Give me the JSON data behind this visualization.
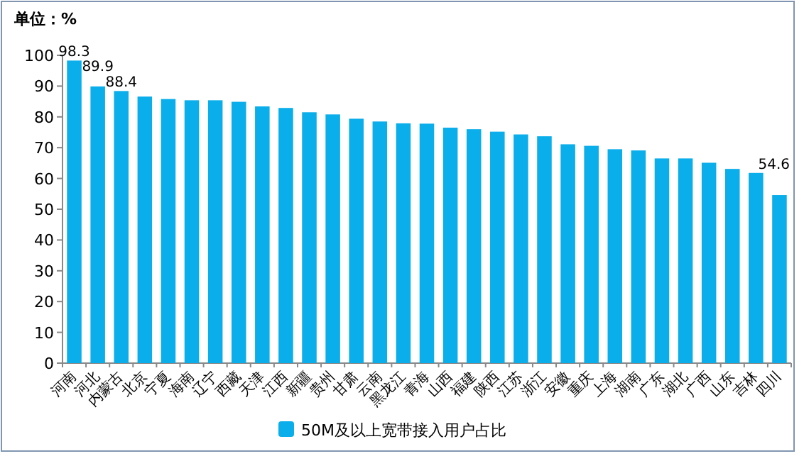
{
  "chart_data": {
    "type": "bar",
    "title": "单位：%",
    "categories": [
      "河南",
      "河北",
      "内蒙古",
      "北京",
      "宁夏",
      "海南",
      "辽宁",
      "西藏",
      "天津",
      "江西",
      "新疆",
      "贵州",
      "甘肃",
      "云南",
      "黑龙江",
      "青海",
      "山西",
      "福建",
      "陕西",
      "江苏",
      "浙江",
      "安徽",
      "重庆",
      "上海",
      "湖南",
      "广东",
      "湖北",
      "广西",
      "山东",
      "吉林",
      "四川"
    ],
    "series": [
      {
        "name": "50M及以上宽带接入用户占比",
        "color": "#0aaeea",
        "values": [
          98.3,
          89.9,
          88.4,
          86.6,
          85.8,
          85.4,
          85.4,
          84.9,
          83.4,
          82.9,
          81.5,
          80.8,
          79.4,
          78.5,
          77.9,
          77.8,
          76.5,
          76.0,
          75.2,
          74.3,
          73.7,
          71.1,
          70.6,
          69.5,
          69.1,
          66.5,
          66.5,
          65.1,
          63.1,
          61.8,
          54.6
        ],
        "value_labels": [
          "98.3",
          "89.9",
          "88.4",
          null,
          null,
          null,
          null,
          null,
          null,
          null,
          null,
          null,
          null,
          null,
          null,
          null,
          null,
          null,
          null,
          null,
          null,
          null,
          null,
          null,
          null,
          null,
          null,
          null,
          null,
          null,
          "54.6"
        ]
      }
    ],
    "ylim": [
      0,
      100
    ],
    "yticks": [
      0,
      10,
      20,
      30,
      40,
      50,
      60,
      70,
      80,
      90,
      100
    ],
    "grid": false,
    "legend": "bottom"
  }
}
